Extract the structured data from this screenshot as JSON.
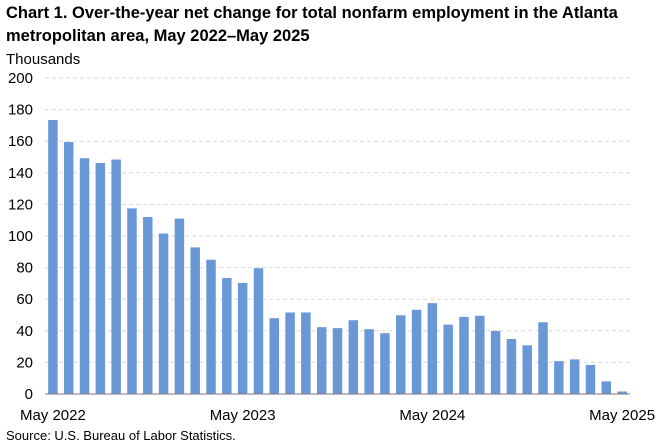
{
  "title_lines": [
    "Chart 1. Over-the-year net change for total nonfarm employment in the Atlanta",
    "metropolitan area, May 2022–May 2025"
  ],
  "source": "Source: U.S. Bureau of Labor Statistics.",
  "chart_data": {
    "type": "bar",
    "ylabel": "Thousands",
    "ylim": [
      0,
      200
    ],
    "y_ticks": [
      0,
      20,
      40,
      60,
      80,
      100,
      120,
      140,
      160,
      180,
      200
    ],
    "x_tick_labels": [
      {
        "label": "May 2022",
        "index": 0
      },
      {
        "label": "May 2023",
        "index": 12
      },
      {
        "label": "May 2024",
        "index": 24
      },
      {
        "label": "May 2025",
        "index": 36
      }
    ],
    "grid": true,
    "bar_color": "#6a98d7",
    "categories": [
      "May 2022",
      "Jun 2022",
      "Jul 2022",
      "Aug 2022",
      "Sep 2022",
      "Oct 2022",
      "Nov 2022",
      "Dec 2022",
      "Jan 2023",
      "Feb 2023",
      "Mar 2023",
      "Apr 2023",
      "May 2023",
      "Jun 2023",
      "Jul 2023",
      "Aug 2023",
      "Sep 2023",
      "Oct 2023",
      "Nov 2023",
      "Dec 2023",
      "Jan 2024",
      "Feb 2024",
      "Mar 2024",
      "Apr 2024",
      "May 2024",
      "Jun 2024",
      "Jul 2024",
      "Aug 2024",
      "Sep 2024",
      "Oct 2024",
      "Nov 2024",
      "Dec 2024",
      "Jan 2025",
      "Feb 2025",
      "Mar 2025",
      "Apr 2025",
      "May 2025"
    ],
    "values": [
      173.4,
      159.5,
      149.2,
      146.2,
      148.4,
      117.5,
      112.0,
      101.6,
      111.0,
      92.8,
      85.0,
      73.4,
      70.3,
      79.6,
      48.0,
      51.6,
      51.6,
      42.3,
      41.7,
      46.7,
      41.0,
      38.5,
      49.8,
      53.3,
      57.5,
      43.9,
      48.8,
      49.5,
      39.9,
      34.8,
      30.8,
      45.4,
      20.8,
      21.9,
      18.4,
      8.0,
      1.6
    ]
  }
}
